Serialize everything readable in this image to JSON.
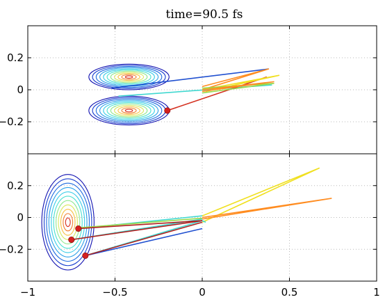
{
  "chart_data": [
    {
      "type": "line",
      "title": "time=90.5 fs",
      "xlabel": "",
      "ylabel": "",
      "xlim": [
        -1,
        1
      ],
      "ylim": [
        -0.4,
        0.4
      ],
      "grid": true,
      "yticks": [
        -0.2,
        0,
        0.2
      ],
      "ytick_labels": [
        "−0.2",
        "0",
        "0.2"
      ],
      "xticks": [
        -1,
        -0.5,
        0,
        0.5,
        1
      ],
      "xtick_labels": [],
      "contours": [
        {
          "name": "upper lobe",
          "cx": -0.42,
          "cy": 0.08,
          "rx_max": 0.23,
          "ry_max": 0.08
        },
        {
          "name": "lower lobe",
          "cx": -0.42,
          "cy": -0.13,
          "rx_max": 0.23,
          "ry_max": 0.09
        }
      ],
      "markers": [
        {
          "x": -0.2,
          "y": -0.13,
          "color": "#d42020"
        }
      ],
      "series": [
        {
          "color": "#2050d0",
          "x": [
            -0.52,
            0.38
          ],
          "y": [
            0.01,
            0.13
          ]
        },
        {
          "color": "#40d8d0",
          "x": [
            -0.48,
            0.4
          ],
          "y": [
            -0.04,
            0.03
          ]
        },
        {
          "color": "#d43020",
          "x": [
            -0.2,
            0.37
          ],
          "y": [
            -0.13,
            0.08
          ]
        },
        {
          "color": "#ff8c20",
          "x": [
            0.0,
            0.38,
            0.0
          ],
          "y": [
            0.0,
            0.13,
            0.02
          ]
        },
        {
          "color": "#f0e020",
          "x": [
            0.0,
            0.44,
            0.02
          ],
          "y": [
            0.0,
            0.09,
            -0.01
          ]
        },
        {
          "color": "#9ad84a",
          "x": [
            0.0,
            0.41,
            0.0
          ],
          "y": [
            0.01,
            0.04,
            -0.02
          ]
        },
        {
          "color": "#ff8c20",
          "x": [
            0.0,
            0.41,
            0.0
          ],
          "y": [
            -0.01,
            0.05,
            0.0
          ]
        }
      ]
    },
    {
      "type": "line",
      "title": "",
      "xlabel": "",
      "ylabel": "",
      "xlim": [
        -1,
        1
      ],
      "ylim": [
        -0.4,
        0.4
      ],
      "grid": true,
      "yticks": [
        -0.2,
        0,
        0.2
      ],
      "ytick_labels": [
        "−0.2",
        "0",
        "0.2"
      ],
      "xticks": [
        -1,
        -0.5,
        0,
        0.5,
        1
      ],
      "xtick_labels": [
        "−1",
        "−0.5",
        "0",
        "0.5",
        "1"
      ],
      "contours": [
        {
          "name": "wavepacket",
          "cx": -0.77,
          "cy": -0.03,
          "rx_max": 0.15,
          "ry_max": 0.3
        }
      ],
      "markers": [
        {
          "x": -0.71,
          "y": -0.07,
          "color": "#d42020"
        },
        {
          "x": -0.75,
          "y": -0.14,
          "color": "#d42020"
        },
        {
          "x": -0.67,
          "y": -0.24,
          "color": "#d42020"
        }
      ],
      "series": [
        {
          "color": "#f0e020",
          "x": [
            0.0,
            0.67,
            0.0
          ],
          "y": [
            0.01,
            0.31,
            -0.03
          ]
        },
        {
          "color": "#ff8c20",
          "x": [
            0.0,
            0.74,
            0.0
          ],
          "y": [
            0.0,
            0.12,
            -0.01
          ]
        },
        {
          "color": "#40d8d0",
          "x": [
            -0.67,
            0.0,
            0.02
          ],
          "y": [
            -0.24,
            -0.02,
            -0.03
          ]
        },
        {
          "color": "#2050d0",
          "x": [
            -0.67,
            0.0
          ],
          "y": [
            -0.24,
            -0.07
          ]
        },
        {
          "color": "#b02020",
          "x": [
            -0.67,
            0.0
          ],
          "y": [
            -0.24,
            -0.03
          ]
        },
        {
          "color": "#40d8d0",
          "x": [
            -0.75,
            0.0
          ],
          "y": [
            -0.14,
            -0.01
          ]
        },
        {
          "color": "#b02020",
          "x": [
            -0.75,
            0.0
          ],
          "y": [
            -0.14,
            -0.02
          ]
        },
        {
          "color": "#40d8d0",
          "x": [
            -0.71,
            0.0
          ],
          "y": [
            -0.07,
            0.01
          ]
        },
        {
          "color": "#9ad84a",
          "x": [
            -0.71,
            0.0
          ],
          "y": [
            -0.065,
            -0.005
          ]
        },
        {
          "color": "#b02020",
          "x": [
            -0.71,
            0.0
          ],
          "y": [
            -0.07,
            -0.02
          ]
        }
      ]
    }
  ]
}
